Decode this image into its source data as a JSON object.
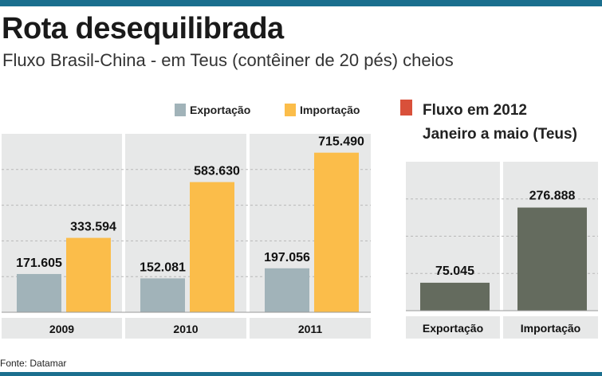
{
  "title": "Rota desequilibrada",
  "subtitle": "Fluxo Brasil-China - em Teus (contêiner de 20 pés) cheios",
  "source": "Fonte: Datamar",
  "colors": {
    "frame": "#1b6f8e",
    "exportacao": "#a1b3b9",
    "importacao": "#fbbd4a",
    "fluxo2012": "#646b5e",
    "legend2012": "#d9503a",
    "panel": "#e7e8e8",
    "grid": "#b8b8b8"
  },
  "chart_data": [
    {
      "type": "bar",
      "title": "Fluxo Brasil-China",
      "categories": [
        "2009",
        "2010",
        "2011"
      ],
      "series": [
        {
          "name": "Exportação",
          "values": [
            171605,
            152081,
            197056
          ],
          "labels": [
            "171.605",
            "152.081",
            "197.056"
          ]
        },
        {
          "name": "Importação",
          "values": [
            333594,
            583630,
            715490
          ],
          "labels": [
            "333.594",
            "583.630",
            "715.490"
          ]
        }
      ],
      "ylim": [
        0,
        800000
      ],
      "grid": true,
      "legend": "top"
    },
    {
      "type": "bar",
      "title": "Fluxo em 2012",
      "subtitle": "Janeiro a maio (Teus)",
      "categories": [
        "Exportação",
        "Importação"
      ],
      "values": [
        75045,
        276888
      ],
      "labels": [
        "75.045",
        "276.888"
      ],
      "ylim": [
        0,
        400000
      ],
      "grid": true
    }
  ]
}
